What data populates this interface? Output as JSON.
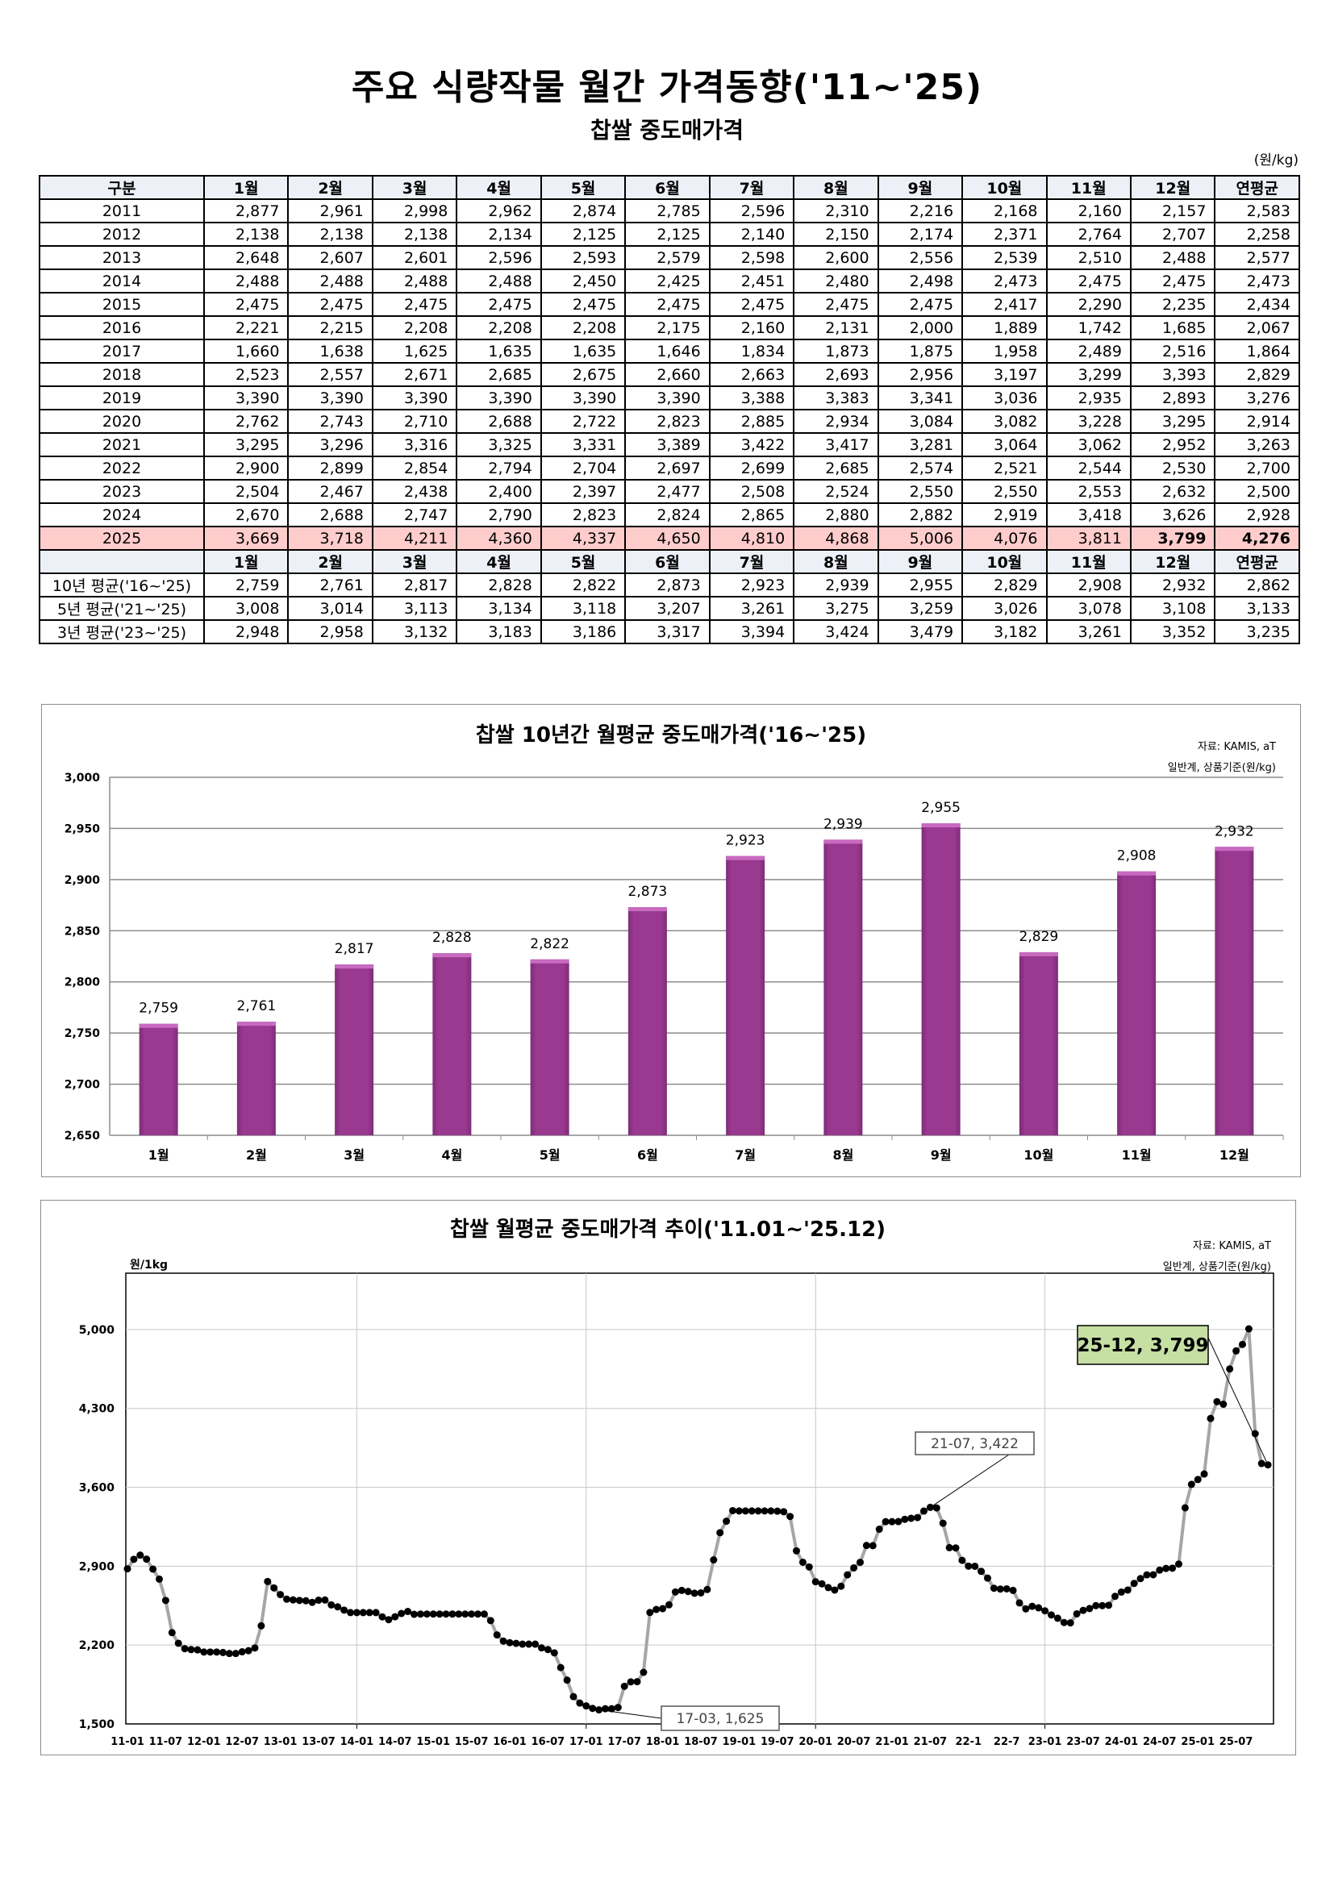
{
  "header": {
    "title": "주요 식량작물 월간 가격동향('11~'25)",
    "subtitle": "찹쌀 중도매가격",
    "unit": "(원/kg)"
  },
  "table": {
    "columns": [
      "구분",
      "1월",
      "2월",
      "3월",
      "4월",
      "5월",
      "6월",
      "7월",
      "8월",
      "9월",
      "10월",
      "11월",
      "12월",
      "연평균"
    ],
    "rows": [
      [
        "2011",
        "2,877",
        "2,961",
        "2,998",
        "2,962",
        "2,874",
        "2,785",
        "2,596",
        "2,310",
        "2,216",
        "2,168",
        "2,160",
        "2,157",
        "2,583"
      ],
      [
        "2012",
        "2,138",
        "2,138",
        "2,138",
        "2,134",
        "2,125",
        "2,125",
        "2,140",
        "2,150",
        "2,174",
        "2,371",
        "2,764",
        "2,707",
        "2,258"
      ],
      [
        "2013",
        "2,648",
        "2,607",
        "2,601",
        "2,596",
        "2,593",
        "2,579",
        "2,598",
        "2,600",
        "2,556",
        "2,539",
        "2,510",
        "2,488",
        "2,577"
      ],
      [
        "2014",
        "2,488",
        "2,488",
        "2,488",
        "2,488",
        "2,450",
        "2,425",
        "2,451",
        "2,480",
        "2,498",
        "2,473",
        "2,475",
        "2,475",
        "2,473"
      ],
      [
        "2015",
        "2,475",
        "2,475",
        "2,475",
        "2,475",
        "2,475",
        "2,475",
        "2,475",
        "2,475",
        "2,475",
        "2,417",
        "2,290",
        "2,235",
        "2,434"
      ],
      [
        "2016",
        "2,221",
        "2,215",
        "2,208",
        "2,208",
        "2,208",
        "2,175",
        "2,160",
        "2,131",
        "2,000",
        "1,889",
        "1,742",
        "1,685",
        "2,067"
      ],
      [
        "2017",
        "1,660",
        "1,638",
        "1,625",
        "1,635",
        "1,635",
        "1,646",
        "1,834",
        "1,873",
        "1,875",
        "1,958",
        "2,489",
        "2,516",
        "1,864"
      ],
      [
        "2018",
        "2,523",
        "2,557",
        "2,671",
        "2,685",
        "2,675",
        "2,660",
        "2,663",
        "2,693",
        "2,956",
        "3,197",
        "3,299",
        "3,393",
        "2,829"
      ],
      [
        "2019",
        "3,390",
        "3,390",
        "3,390",
        "3,390",
        "3,390",
        "3,390",
        "3,388",
        "3,383",
        "3,341",
        "3,036",
        "2,935",
        "2,893",
        "3,276"
      ],
      [
        "2020",
        "2,762",
        "2,743",
        "2,710",
        "2,688",
        "2,722",
        "2,823",
        "2,885",
        "2,934",
        "3,084",
        "3,082",
        "3,228",
        "3,295",
        "2,914"
      ],
      [
        "2021",
        "3,295",
        "3,296",
        "3,316",
        "3,325",
        "3,331",
        "3,389",
        "3,422",
        "3,417",
        "3,281",
        "3,064",
        "3,062",
        "2,952",
        "3,263"
      ],
      [
        "2022",
        "2,900",
        "2,899",
        "2,854",
        "2,794",
        "2,704",
        "2,697",
        "2,699",
        "2,685",
        "2,574",
        "2,521",
        "2,544",
        "2,530",
        "2,700"
      ],
      [
        "2023",
        "2,504",
        "2,467",
        "2,438",
        "2,400",
        "2,397",
        "2,477",
        "2,508",
        "2,524",
        "2,550",
        "2,550",
        "2,553",
        "2,632",
        "2,500"
      ],
      [
        "2024",
        "2,670",
        "2,688",
        "2,747",
        "2,790",
        "2,823",
        "2,824",
        "2,865",
        "2,880",
        "2,882",
        "2,919",
        "3,418",
        "3,626",
        "2,928"
      ],
      [
        "2025",
        "3,669",
        "3,718",
        "4,211",
        "4,360",
        "4,337",
        "4,650",
        "4,810",
        "4,868",
        "5,006",
        "4,076",
        "3,811",
        "3,799",
        "4,276"
      ]
    ],
    "highlight_row": "2025",
    "highlight_color": "#ffcccc",
    "sub_columns": [
      "",
      "1월",
      "2월",
      "3월",
      "4월",
      "5월",
      "6월",
      "7월",
      "8월",
      "9월",
      "10월",
      "11월",
      "12월",
      "연평균"
    ],
    "avg_rows": [
      [
        "10년 평균('16~'25)",
        "2,759",
        "2,761",
        "2,817",
        "2,828",
        "2,822",
        "2,873",
        "2,923",
        "2,939",
        "2,955",
        "2,829",
        "2,908",
        "2,932",
        "2,862"
      ],
      [
        "5년 평균('21~'25)",
        "3,008",
        "3,014",
        "3,113",
        "3,134",
        "3,118",
        "3,207",
        "3,261",
        "3,275",
        "3,259",
        "3,026",
        "3,078",
        "3,108",
        "3,133"
      ],
      [
        "3년 평균('23~'25)",
        "2,948",
        "2,958",
        "3,132",
        "3,183",
        "3,186",
        "3,317",
        "3,394",
        "3,424",
        "3,479",
        "3,182",
        "3,261",
        "3,352",
        "3,235"
      ]
    ]
  },
  "chart_data": [
    {
      "type": "bar",
      "title": "찹쌀 10년간 월평균 중도매가격('16~'25)",
      "source": "자료: KAMIS, aT",
      "note": "일반계, 상품기준(원/kg)",
      "categories": [
        "1월",
        "2월",
        "3월",
        "4월",
        "5월",
        "6월",
        "7월",
        "8월",
        "9월",
        "10월",
        "11월",
        "12월"
      ],
      "values": [
        2759,
        2761,
        2817,
        2828,
        2822,
        2873,
        2923,
        2939,
        2955,
        2829,
        2908,
        2932
      ],
      "value_labels": [
        "2,759",
        "2,761",
        "2,817",
        "2,828",
        "2,822",
        "2,873",
        "2,923",
        "2,939",
        "2,955",
        "2,829",
        "2,908",
        "2,932"
      ],
      "ylim": [
        2650,
        3000
      ],
      "yticks": [
        2650,
        2700,
        2750,
        2800,
        2850,
        2900,
        2950,
        3000
      ],
      "ytick_labels": [
        "2,650",
        "2,700",
        "2,750",
        "2,800",
        "2,850",
        "2,900",
        "2,950",
        "3,000"
      ],
      "grid": true,
      "legend": "none",
      "color": "#993990"
    },
    {
      "type": "line",
      "title": "찹쌀 월평균 중도매가격 추이('11.01~'25.12)",
      "source": "자료: KAMIS, aT",
      "note": "일반계, 상품기준(원/kg)",
      "ylabel": "원/1kg",
      "ylim": [
        1500,
        5500
      ],
      "yticks": [
        1500,
        2200,
        2900,
        3600,
        4300,
        5000
      ],
      "ytick_labels": [
        "1,500",
        "2,200",
        "2,900",
        "3,600",
        "4,300",
        "5,000"
      ],
      "xtick_labels": [
        "11-01",
        "11-07",
        "12-01",
        "12-07",
        "13-01",
        "13-07",
        "14-01",
        "14-07",
        "15-01",
        "15-07",
        "16-01",
        "16-07",
        "17-01",
        "17-07",
        "18-01",
        "18-07",
        "19-01",
        "19-07",
        "20-01",
        "20-07",
        "21-01",
        "21-07",
        "22-1",
        "22-7",
        "23-01",
        "23-07",
        "24-01",
        "24-07",
        "25-01",
        "25-07"
      ],
      "y": [
        2877,
        2961,
        2998,
        2962,
        2874,
        2785,
        2596,
        2310,
        2216,
        2168,
        2160,
        2157,
        2138,
        2138,
        2138,
        2134,
        2125,
        2125,
        2140,
        2150,
        2174,
        2371,
        2764,
        2707,
        2648,
        2607,
        2601,
        2596,
        2593,
        2579,
        2598,
        2600,
        2556,
        2539,
        2510,
        2488,
        2488,
        2488,
        2488,
        2488,
        2450,
        2425,
        2451,
        2480,
        2498,
        2473,
        2475,
        2475,
        2475,
        2475,
        2475,
        2475,
        2475,
        2475,
        2475,
        2475,
        2475,
        2417,
        2290,
        2235,
        2221,
        2215,
        2208,
        2208,
        2208,
        2175,
        2160,
        2131,
        2000,
        1889,
        1742,
        1685,
        1660,
        1638,
        1625,
        1635,
        1635,
        1646,
        1834,
        1873,
        1875,
        1958,
        2489,
        2516,
        2523,
        2557,
        2671,
        2685,
        2675,
        2660,
        2663,
        2693,
        2956,
        3197,
        3299,
        3393,
        3390,
        3390,
        3390,
        3390,
        3390,
        3390,
        3388,
        3383,
        3341,
        3036,
        2935,
        2893,
        2762,
        2743,
        2710,
        2688,
        2722,
        2823,
        2885,
        2934,
        3084,
        3082,
        3228,
        3295,
        3295,
        3296,
        3316,
        3325,
        3331,
        3389,
        3422,
        3417,
        3281,
        3064,
        3062,
        2952,
        2900,
        2899,
        2854,
        2794,
        2704,
        2697,
        2699,
        2685,
        2574,
        2521,
        2544,
        2530,
        2504,
        2467,
        2438,
        2400,
        2397,
        2477,
        2508,
        2524,
        2550,
        2550,
        2553,
        2632,
        2670,
        2688,
        2747,
        2790,
        2823,
        2824,
        2865,
        2880,
        2882,
        2919,
        3418,
        3626,
        3669,
        3718,
        4211,
        4360,
        4337,
        4650,
        4810,
        4868,
        5006,
        4076,
        3811,
        3799
      ],
      "annotations": [
        {
          "index": 74,
          "text": "17-03,  1,625",
          "style": "plain"
        },
        {
          "index": 126,
          "text": "21-07,  3,422",
          "style": "plain"
        },
        {
          "index": 179,
          "text": "25-12,  3,799",
          "style": "highlight"
        }
      ],
      "line_color": "#a6a6a6",
      "marker_color": "#000000",
      "highlight_color": "#c6e0a4",
      "legend": "none"
    }
  ]
}
